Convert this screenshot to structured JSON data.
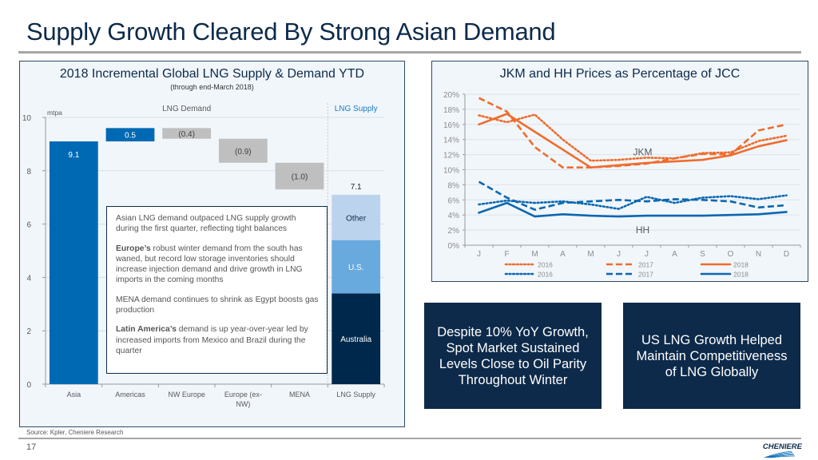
{
  "slide": {
    "title": "Supply Growth Cleared By Strong Asian Demand",
    "page_number": "17",
    "source": "Source: Kpler, Cheniere Research",
    "logo_text": "CHENIERE"
  },
  "colors": {
    "title": "#0d2a4a",
    "demand_blue": "#0069b4",
    "decline_gray": "#bfbfbf",
    "supply_other": "#bcd3ee",
    "supply_us": "#68aade",
    "supply_australia": "#00284c",
    "jkm_orange": "#ef6c2c",
    "hh_blue": "#0a67b1",
    "navy_box": "#0d2a4a"
  },
  "left_panel": {
    "title": "2018 Incremental Global LNG Supply & Demand YTD",
    "subtitle": "(through end-March 2018)",
    "callout": {
      "p1": "Asian LNG demand outpaced LNG supply growth during the first quarter, reflecting tight balances",
      "p2_bold": "Europe’s",
      "p2": " robust winter demand from the south has waned, but record low storage inventories should increase injection demand and drive growth in LNG imports in the coming months",
      "p3": "MENA demand continues to shrink as Egypt boosts gas production",
      "p4_bold": "Latin America’s",
      "p4": " demand is up year-over-year led by increased imports from Mexico and Brazil during the quarter"
    }
  },
  "right_panel": {
    "title": "JKM and HH Prices as Percentage of JCC"
  },
  "boxes": {
    "left": "Despite 10% YoY Growth, Spot Market Sustained Levels Close to Oil Parity Throughout Winter",
    "right": "US LNG Growth Helped Maintain Competitiveness of LNG Globally"
  },
  "chart_data": [
    {
      "type": "bar",
      "subtype": "waterfall",
      "title": "2018 Incremental Global LNG Supply & Demand YTD",
      "subtitle": "(through end-March 2018)",
      "ylabel": "mtpa",
      "ylim": [
        0,
        10
      ],
      "yticks": [
        "0",
        "2",
        "4",
        "6",
        "8",
        "10"
      ],
      "section_labels": [
        "LNG Demand",
        "LNG Supply"
      ],
      "categories": [
        "Asia",
        "Americas",
        "NW Europe",
        "Europe (ex-NW)",
        "MENA",
        "LNG Supply"
      ],
      "category_labels": [
        [
          "Asia"
        ],
        [
          "Americas"
        ],
        [
          "NW Europe"
        ],
        [
          "Europe (ex-",
          "NW)"
        ],
        [
          "MENA"
        ],
        [
          "LNG Supply"
        ]
      ],
      "waterfall": [
        {
          "category": "Asia",
          "start": 0,
          "end": 9.1,
          "label": "9.1",
          "kind": "increase"
        },
        {
          "category": "Americas",
          "start": 9.1,
          "end": 9.6,
          "label": "0.5",
          "kind": "increase"
        },
        {
          "category": "NW Europe",
          "start": 9.6,
          "end": 9.2,
          "label": "(0.4)",
          "kind": "decrease"
        },
        {
          "category": "Europe (ex-NW)",
          "start": 9.2,
          "end": 8.3,
          "label": "(0.9)",
          "kind": "decrease"
        },
        {
          "category": "MENA",
          "start": 8.3,
          "end": 7.3,
          "label": "(1.0)",
          "kind": "decrease"
        }
      ],
      "supply_stack": {
        "total": 7.1,
        "total_label": "7.1",
        "series": [
          {
            "name": "Australia",
            "value": 3.4
          },
          {
            "name": "U.S.",
            "value": 2.0
          },
          {
            "name": "Other",
            "value": 1.7
          }
        ]
      },
      "grid": true
    },
    {
      "type": "line",
      "title": "JKM and HH Prices as Percentage of JCC",
      "x": [
        "J",
        "F",
        "M",
        "A",
        "M",
        "J",
        "J",
        "A",
        "S",
        "O",
        "N",
        "D"
      ],
      "ylim": [
        0,
        20
      ],
      "yticks": [
        "0%",
        "2%",
        "4%",
        "6%",
        "8%",
        "10%",
        "12%",
        "14%",
        "16%",
        "18%",
        "20%"
      ],
      "annotations": [
        "JKM",
        "HH"
      ],
      "legend_position": "bottom",
      "series": [
        {
          "name": "JKM 2016",
          "group": "JKM",
          "year": "2016",
          "style": "dotted",
          "values": [
            17.2,
            16.3,
            17.3,
            14.0,
            11.2,
            11.3,
            11.6,
            11.5,
            12.2,
            12.3,
            13.8,
            14.5
          ]
        },
        {
          "name": "JKM 2017",
          "group": "JKM",
          "year": "2017",
          "style": "dashed",
          "values": [
            19.5,
            17.7,
            13.0,
            10.3,
            10.3,
            10.5,
            10.8,
            11.5,
            12.1,
            12.0,
            15.2,
            16.0
          ]
        },
        {
          "name": "JKM 2018",
          "group": "JKM",
          "year": "2018",
          "style": "solid",
          "values": [
            16.0,
            17.4,
            null,
            null,
            10.3,
            null,
            null,
            null,
            null,
            null,
            null,
            null
          ]
        },
        {
          "name": "JKM 2018 (cont.)",
          "group": "JKM",
          "year": "2018",
          "style": "solid",
          "hidden_in_legend": true,
          "values": [
            null,
            null,
            null,
            null,
            10.3,
            10.6,
            10.9,
            11.1,
            11.3,
            11.9,
            13.1,
            13.9
          ]
        },
        {
          "name": "HH 2016",
          "group": "HH",
          "year": "2016",
          "style": "dotted",
          "values": [
            5.4,
            5.9,
            5.6,
            5.8,
            5.4,
            4.8,
            6.4,
            5.6,
            6.3,
            6.5,
            6.1,
            6.6
          ]
        },
        {
          "name": "HH 2017",
          "group": "HH",
          "year": "2017",
          "style": "dashed",
          "values": [
            8.4,
            6.3,
            4.7,
            5.6,
            5.8,
            6.0,
            5.8,
            6.1,
            6.0,
            5.8,
            5.0,
            5.3
          ]
        },
        {
          "name": "HH 2018",
          "group": "HH",
          "year": "2018",
          "style": "solid",
          "values": [
            4.3,
            5.6,
            3.8,
            4.1,
            3.9,
            3.8,
            3.9,
            3.9,
            3.9,
            4.0,
            4.1,
            4.4
          ]
        }
      ],
      "legend": [
        {
          "label": "2016",
          "group": "JKM",
          "style": "dotted"
        },
        {
          "label": "2017",
          "group": "JKM",
          "style": "dashed"
        },
        {
          "label": "2018",
          "group": "JKM",
          "style": "solid"
        },
        {
          "label": "2016",
          "group": "HH",
          "style": "dotted"
        },
        {
          "label": "2017",
          "group": "HH",
          "style": "dashed"
        },
        {
          "label": "2018",
          "group": "HH",
          "style": "solid"
        }
      ],
      "grid": true
    }
  ]
}
